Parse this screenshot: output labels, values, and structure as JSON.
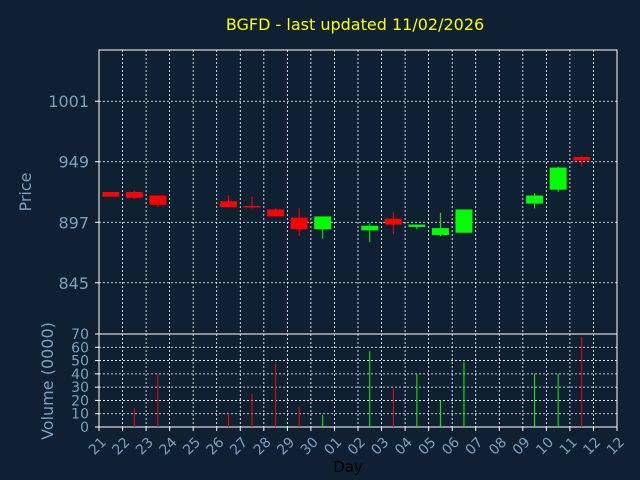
{
  "chart_data": [
    {
      "type": "candlestick",
      "title": "BGFD - last updated 11/02/2026",
      "ylabel": "Price",
      "ylim": [
        801,
        1045
      ],
      "yticks": [
        845,
        897,
        949,
        1001
      ],
      "x": [
        "21",
        "22",
        "23",
        "24",
        "25",
        "26",
        "27",
        "28",
        "29",
        "30",
        "01",
        "02",
        "03",
        "04",
        "05",
        "06",
        "07",
        "08",
        "09",
        "10",
        "11",
        "12"
      ],
      "candles": [
        {
          "day": "21",
          "open": 923,
          "high": 923,
          "low": 919,
          "close": 919
        },
        {
          "day": "22",
          "open": 923,
          "high": 924,
          "low": 917,
          "close": 918
        },
        {
          "day": "23",
          "open": 920,
          "high": 920,
          "low": 910,
          "close": 912
        },
        {
          "day": "26",
          "open": 915,
          "high": 920,
          "low": 910,
          "close": 910
        },
        {
          "day": "27",
          "open": 911,
          "high": 919,
          "low": 909,
          "close": 910
        },
        {
          "day": "28",
          "open": 908,
          "high": 909,
          "low": 902,
          "close": 902
        },
        {
          "day": "29",
          "open": 901,
          "high": 909,
          "low": 885,
          "close": 891
        },
        {
          "day": "30",
          "open": 891,
          "high": 901,
          "low": 883,
          "close": 902
        },
        {
          "day": "02",
          "open": 890,
          "high": 896,
          "low": 880,
          "close": 894
        },
        {
          "day": "03",
          "open": 900,
          "high": 906,
          "low": 887,
          "close": 895
        },
        {
          "day": "04",
          "open": 893,
          "high": 895,
          "low": 891,
          "close": 895
        },
        {
          "day": "05",
          "open": 886,
          "high": 905,
          "low": 885,
          "close": 892
        },
        {
          "day": "06",
          "open": 888,
          "high": 908,
          "low": 888,
          "close": 908
        },
        {
          "day": "09",
          "open": 913,
          "high": 922,
          "low": 909,
          "close": 920
        },
        {
          "day": "10",
          "open": 925,
          "high": 945,
          "low": 923,
          "close": 944
        },
        {
          "day": "11",
          "open": 953,
          "high": 954,
          "low": 945,
          "close": 950
        }
      ],
      "colors": {
        "up": "#00ff00",
        "down": "#ff0000"
      }
    },
    {
      "type": "bar",
      "xlabel": "Day",
      "ylabel": "Volume (0000)",
      "ylim": [
        0,
        70
      ],
      "yticks": [
        0,
        10,
        20,
        30,
        40,
        50,
        60,
        70
      ],
      "categories": [
        "21",
        "22",
        "23",
        "24",
        "25",
        "26",
        "27",
        "28",
        "29",
        "30",
        "01",
        "02",
        "03",
        "04",
        "05",
        "06",
        "07",
        "08",
        "09",
        "10",
        "11",
        "12"
      ],
      "values": [
        0,
        14,
        40,
        0,
        0,
        10,
        25,
        48,
        15,
        9,
        0,
        57,
        29,
        40,
        20,
        49,
        0,
        0,
        40,
        40,
        68,
        0
      ],
      "direction": [
        "",
        "down",
        "down",
        "",
        "",
        "down",
        "down",
        "down",
        "down",
        "up",
        "",
        "up",
        "down",
        "up",
        "up",
        "up",
        "",
        "",
        "up",
        "up",
        "down",
        ""
      ]
    }
  ],
  "colors": {
    "background": "#0f2033",
    "grid": "#ffffff",
    "axis_text": "#7f9fbf",
    "title": "#ffff00"
  }
}
